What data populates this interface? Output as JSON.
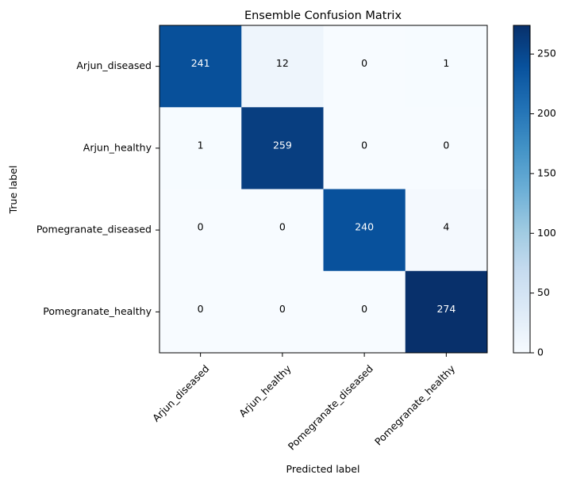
{
  "chart_data": {
    "type": "heatmap",
    "title": "Ensemble Confusion Matrix",
    "xlabel": "Predicted label",
    "ylabel": "True label",
    "x_categories": [
      "Arjun_diseased",
      "Arjun_healthy",
      "Pomegranate_diseased",
      "Pomegranate_healthy"
    ],
    "y_categories": [
      "Arjun_diseased",
      "Arjun_healthy",
      "Pomegranate_diseased",
      "Pomegranate_healthy"
    ],
    "values": [
      [
        241,
        12,
        0,
        1
      ],
      [
        1,
        259,
        0,
        0
      ],
      [
        0,
        0,
        240,
        4
      ],
      [
        0,
        0,
        0,
        274
      ]
    ],
    "colormap": "Blues",
    "color_range": [
      0,
      274
    ],
    "colorbar_ticks": [
      0,
      50,
      100,
      150,
      200,
      250
    ],
    "text_color_light": "#ffffff",
    "text_color_dark": "#000000"
  }
}
